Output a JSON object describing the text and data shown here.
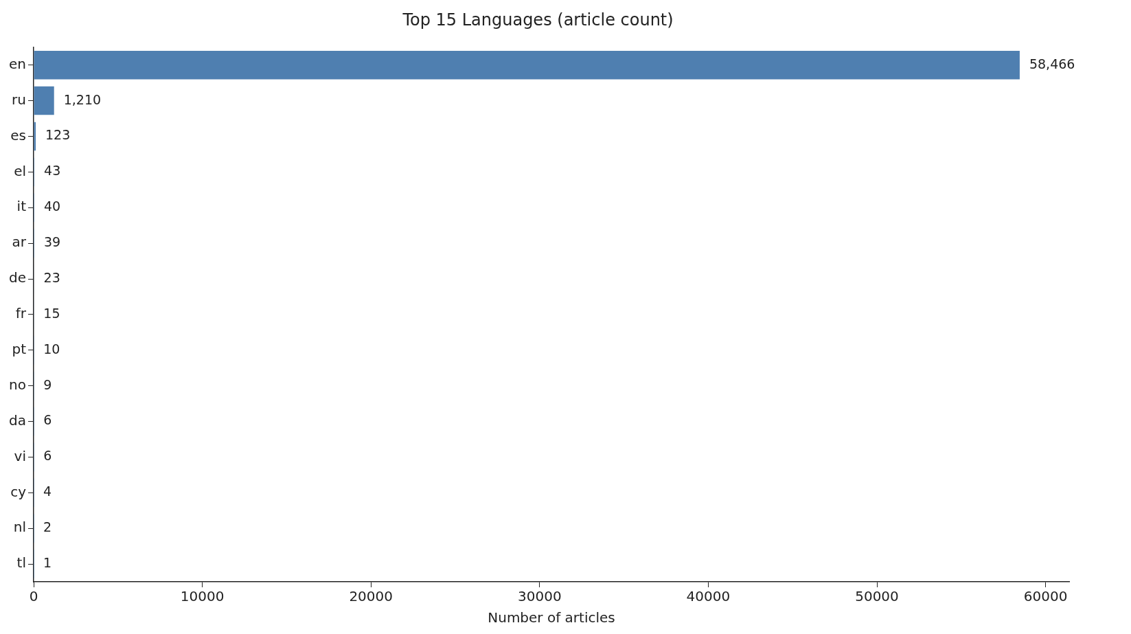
{
  "chart_data": {
    "type": "bar",
    "orientation": "horizontal",
    "title": "Top 15 Languages (article count)",
    "xlabel": "Number of articles",
    "categories": [
      "en",
      "ru",
      "es",
      "el",
      "it",
      "ar",
      "de",
      "fr",
      "pt",
      "no",
      "da",
      "vi",
      "cy",
      "nl",
      "tl"
    ],
    "values": [
      58466,
      1210,
      123,
      43,
      40,
      39,
      23,
      15,
      10,
      9,
      6,
      6,
      4,
      2,
      1
    ],
    "value_labels": [
      "58,466",
      "1,210",
      "123",
      "43",
      "40",
      "39",
      "23",
      "15",
      "10",
      "9",
      "6",
      "6",
      "4",
      "2",
      "1"
    ],
    "color": "#4f7fb0",
    "xlim": [
      0,
      61400
    ],
    "xticks": [
      0,
      10000,
      20000,
      30000,
      40000,
      50000,
      60000
    ],
    "grid": false,
    "legend": false
  }
}
